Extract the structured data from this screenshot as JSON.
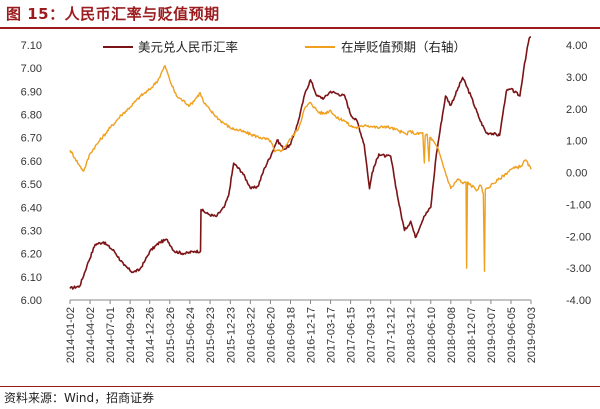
{
  "figure": {
    "title": "图 15：人民币汇率与贬值预期",
    "source": "资料来源：Wind，招商证券"
  },
  "colors": {
    "title": "#9b1b1e",
    "series_usdcny": "#7b1416",
    "series_expectation": "#f0a01f",
    "axis": "#888888"
  },
  "chart_data": {
    "type": "line",
    "x_tick_labels": [
      "2014-01-02",
      "2014-04-02",
      "2014-07-01",
      "2014-09-29",
      "2014-12-26",
      "2015-03-26",
      "2015-06-24",
      "2015-09-23",
      "2015-12-23",
      "2016-03-22",
      "2016-06-20",
      "2016-09-18",
      "2016-12-17",
      "2017-03-17",
      "2017-06-15",
      "2017-09-13",
      "2017-12-12",
      "2018-03-12",
      "2018-06-10",
      "2018-09-08",
      "2018-12-07",
      "2019-03-07",
      "2019-06-05",
      "2019-09-03"
    ],
    "xlim": [
      "2014-01-02",
      "2019-09-03"
    ],
    "left_axis": {
      "ylim": [
        6.0,
        7.1
      ],
      "ticks": [
        "6.00",
        "6.10",
        "6.20",
        "6.30",
        "6.40",
        "6.50",
        "6.60",
        "6.70",
        "6.80",
        "6.90",
        "7.00",
        "7.10"
      ]
    },
    "right_axis": {
      "ylim": [
        -4.0,
        4.0
      ],
      "ticks": [
        "4.00",
        "3.00",
        "2.00",
        "1.00",
        "0.00",
        "-1.00",
        "-2.00",
        "-3.00",
        "-4.00"
      ]
    },
    "series": [
      {
        "name": "美元兑人民币汇率",
        "axis": "left",
        "points": [
          [
            "2014-01-02",
            6.05
          ],
          [
            "2014-02-15",
            6.06
          ],
          [
            "2014-03-20",
            6.15
          ],
          [
            "2014-04-25",
            6.24
          ],
          [
            "2014-06-01",
            6.25
          ],
          [
            "2014-07-20",
            6.21
          ],
          [
            "2014-09-01",
            6.15
          ],
          [
            "2014-10-10",
            6.12
          ],
          [
            "2014-11-10",
            6.13
          ],
          [
            "2014-12-05",
            6.17
          ],
          [
            "2014-12-26",
            6.21
          ],
          [
            "2015-02-10",
            6.25
          ],
          [
            "2015-03-15",
            6.26
          ],
          [
            "2015-04-15",
            6.21
          ],
          [
            "2015-06-01",
            6.2
          ],
          [
            "2015-07-15",
            6.21
          ],
          [
            "2015-08-11",
            6.21
          ],
          [
            "2015-08-13",
            6.39
          ],
          [
            "2015-09-15",
            6.37
          ],
          [
            "2015-10-20",
            6.36
          ],
          [
            "2015-11-25",
            6.4
          ],
          [
            "2015-12-15",
            6.45
          ],
          [
            "2016-01-07",
            6.59
          ],
          [
            "2016-02-15",
            6.55
          ],
          [
            "2016-03-25",
            6.48
          ],
          [
            "2016-04-25",
            6.49
          ],
          [
            "2016-05-25",
            6.57
          ],
          [
            "2016-06-25",
            6.63
          ],
          [
            "2016-07-20",
            6.69
          ],
          [
            "2016-08-20",
            6.65
          ],
          [
            "2016-09-18",
            6.67
          ],
          [
            "2016-10-20",
            6.76
          ],
          [
            "2016-11-25",
            6.9
          ],
          [
            "2016-12-17",
            6.95
          ],
          [
            "2017-01-15",
            6.88
          ],
          [
            "2017-02-15",
            6.87
          ],
          [
            "2017-03-17",
            6.9
          ],
          [
            "2017-04-15",
            6.89
          ],
          [
            "2017-05-20",
            6.88
          ],
          [
            "2017-06-15",
            6.8
          ],
          [
            "2017-07-15",
            6.77
          ],
          [
            "2017-08-15",
            6.67
          ],
          [
            "2017-09-08",
            6.48
          ],
          [
            "2017-09-20",
            6.55
          ],
          [
            "2017-10-20",
            6.63
          ],
          [
            "2017-11-20",
            6.62
          ],
          [
            "2017-12-12",
            6.62
          ],
          [
            "2018-01-15",
            6.43
          ],
          [
            "2018-02-12",
            6.3
          ],
          [
            "2018-03-12",
            6.34
          ],
          [
            "2018-04-02",
            6.27
          ],
          [
            "2018-05-10",
            6.36
          ],
          [
            "2018-06-10",
            6.4
          ],
          [
            "2018-07-05",
            6.63
          ],
          [
            "2018-08-15",
            6.88
          ],
          [
            "2018-09-08",
            6.84
          ],
          [
            "2018-10-31",
            6.96
          ],
          [
            "2018-12-07",
            6.88
          ],
          [
            "2019-01-15",
            6.78
          ],
          [
            "2019-02-15",
            6.72
          ],
          [
            "2019-03-07",
            6.72
          ],
          [
            "2019-04-15",
            6.71
          ],
          [
            "2019-05-15",
            6.9
          ],
          [
            "2019-06-05",
            6.91
          ],
          [
            "2019-07-15",
            6.88
          ],
          [
            "2019-08-05",
            7.02
          ],
          [
            "2019-09-03",
            7.17
          ]
        ]
      },
      {
        "name": "在岸贬值预期（右轴）",
        "axis": "right",
        "points": [
          [
            "2014-01-02",
            0.7
          ],
          [
            "2014-01-25",
            0.45
          ],
          [
            "2014-02-15",
            0.2
          ],
          [
            "2014-03-05",
            0.05
          ],
          [
            "2014-04-02",
            0.6
          ],
          [
            "2014-05-15",
            1.0
          ],
          [
            "2014-07-01",
            1.4
          ],
          [
            "2014-08-20",
            1.8
          ],
          [
            "2014-09-29",
            2.05
          ],
          [
            "2014-11-15",
            2.4
          ],
          [
            "2014-12-26",
            2.6
          ],
          [
            "2015-02-01",
            2.9
          ],
          [
            "2015-03-05",
            3.35
          ],
          [
            "2015-03-26",
            2.9
          ],
          [
            "2015-04-25",
            2.4
          ],
          [
            "2015-06-24",
            2.1
          ],
          [
            "2015-08-10",
            2.5
          ],
          [
            "2015-08-25",
            2.2
          ],
          [
            "2015-09-23",
            1.95
          ],
          [
            "2015-11-05",
            1.65
          ],
          [
            "2015-12-23",
            1.4
          ],
          [
            "2016-02-10",
            1.3
          ],
          [
            "2016-03-22",
            1.2
          ],
          [
            "2016-05-05",
            1.1
          ],
          [
            "2016-06-20",
            1.0
          ],
          [
            "2016-07-10",
            0.65
          ],
          [
            "2016-08-10",
            0.7
          ],
          [
            "2016-09-18",
            1.05
          ],
          [
            "2016-10-25",
            1.4
          ],
          [
            "2016-11-20",
            2.0
          ],
          [
            "2016-12-17",
            2.2
          ],
          [
            "2017-01-20",
            1.9
          ],
          [
            "2017-02-15",
            1.85
          ],
          [
            "2017-03-17",
            1.95
          ],
          [
            "2017-04-15",
            1.7
          ],
          [
            "2017-05-15",
            1.65
          ],
          [
            "2017-06-15",
            1.45
          ],
          [
            "2017-07-20",
            1.4
          ],
          [
            "2017-08-20",
            1.5
          ],
          [
            "2017-09-13",
            1.45
          ],
          [
            "2017-10-20",
            1.4
          ],
          [
            "2017-11-15",
            1.45
          ],
          [
            "2017-12-12",
            1.4
          ],
          [
            "2018-01-20",
            1.3
          ],
          [
            "2018-02-20",
            1.2
          ],
          [
            "2018-03-12",
            1.3
          ],
          [
            "2018-04-05",
            1.2
          ],
          [
            "2018-05-05",
            1.25
          ],
          [
            "2018-05-12",
            0.3
          ],
          [
            "2018-05-16",
            1.15
          ],
          [
            "2018-05-25",
            1.2
          ],
          [
            "2018-06-02",
            0.35
          ],
          [
            "2018-06-06",
            1.1
          ],
          [
            "2018-06-10",
            1.1
          ],
          [
            "2018-07-15",
            0.7
          ],
          [
            "2018-07-28",
            0.4
          ],
          [
            "2018-08-10",
            0.1
          ],
          [
            "2018-09-08",
            -0.5
          ],
          [
            "2018-10-10",
            -0.2
          ],
          [
            "2018-11-01",
            -0.35
          ],
          [
            "2018-11-15",
            -0.3
          ],
          [
            "2018-11-18",
            -3.0
          ],
          [
            "2018-11-22",
            -0.3
          ],
          [
            "2018-12-07",
            -0.4
          ],
          [
            "2019-01-05",
            -0.55
          ],
          [
            "2019-01-20",
            -0.4
          ],
          [
            "2019-02-01",
            -0.65
          ],
          [
            "2019-02-06",
            -3.1
          ],
          [
            "2019-02-10",
            -0.55
          ],
          [
            "2019-03-07",
            -0.4
          ],
          [
            "2019-04-15",
            -0.2
          ],
          [
            "2019-06-05",
            0.1
          ],
          [
            "2019-07-20",
            0.2
          ],
          [
            "2019-08-10",
            0.4
          ],
          [
            "2019-09-03",
            0.1
          ]
        ]
      }
    ]
  }
}
